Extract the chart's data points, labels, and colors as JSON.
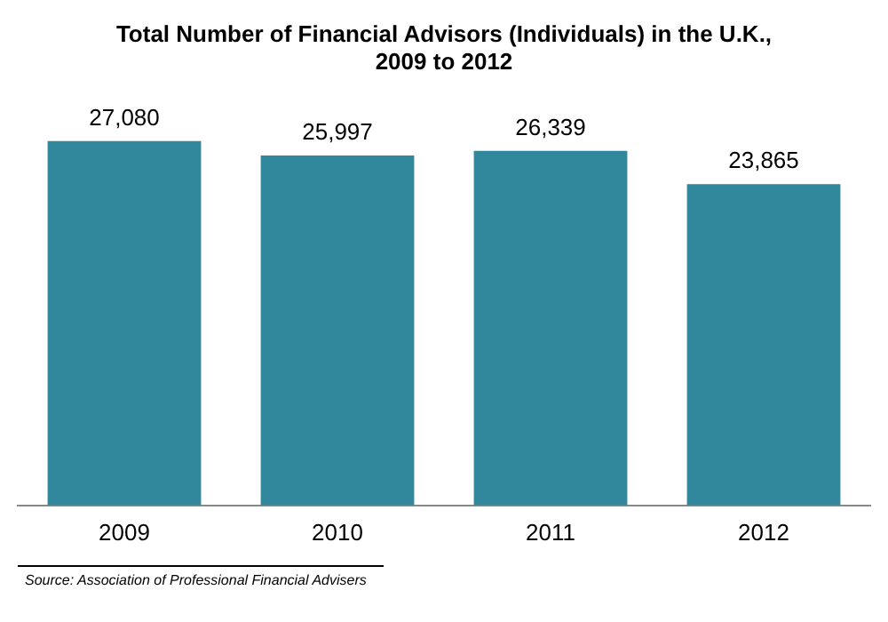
{
  "chart_data": {
    "type": "bar",
    "title": "Total Number of Financial Advisors (Individuals) in the U.K.,\n2009 to 2012",
    "categories": [
      "2009",
      "2010",
      "2011",
      "2012"
    ],
    "values": [
      27080,
      25997,
      26339,
      23865
    ],
    "color": "#31879c",
    "value_labels": [
      "27,080",
      "25,997",
      "26,339",
      "23,865"
    ],
    "grid": false,
    "legend": false,
    "annotations": [
      "Source: Association of Professional Financial Advisers"
    ]
  }
}
